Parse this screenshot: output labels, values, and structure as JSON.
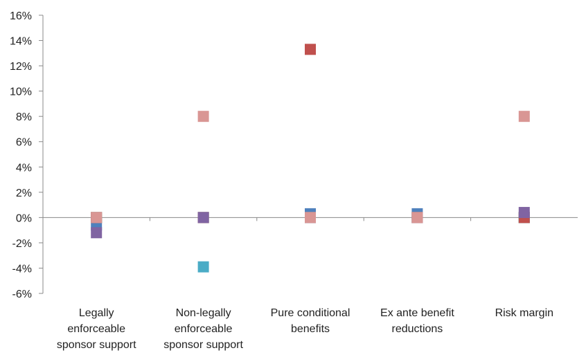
{
  "chart_data": {
    "type": "scatter",
    "categories": [
      [
        "Legally",
        "enforceable",
        "sponsor support"
      ],
      [
        "Non-legally",
        "enforceable",
        "sponsor support"
      ],
      [
        "Pure conditional",
        "benefits"
      ],
      [
        "Ex ante benefit",
        "reductions"
      ],
      [
        "Risk margin"
      ]
    ],
    "yticks": [
      "16%",
      "14%",
      "12%",
      "10%",
      "8%",
      "6%",
      "4%",
      "2%",
      "0%",
      "-2%",
      "-4%",
      "-6%"
    ],
    "ylim": [
      -6,
      16
    ],
    "grid": false,
    "legend": "none",
    "series": [
      {
        "color": "#4f81bd",
        "values": [
          -0.6,
          0.0,
          0.3,
          0.3,
          0.0
        ]
      },
      {
        "color": "#9bbb59",
        "values": [
          0.0,
          0.0,
          0.0,
          0.0,
          0.0
        ]
      },
      {
        "color": "#4bacc6",
        "values": [
          0.0,
          -3.9,
          0.0,
          0.0,
          0.0
        ]
      },
      {
        "color": "#c0504d",
        "values": [
          0.0,
          0.0,
          13.3,
          0.0,
          0.0
        ]
      },
      {
        "color": "#8064a2",
        "values": [
          -1.2,
          0.0,
          0.0,
          0.0,
          0.4
        ]
      },
      {
        "color": "#d99694",
        "values": [
          0.0,
          8.0,
          0.0,
          0.0,
          8.0
        ]
      }
    ]
  }
}
